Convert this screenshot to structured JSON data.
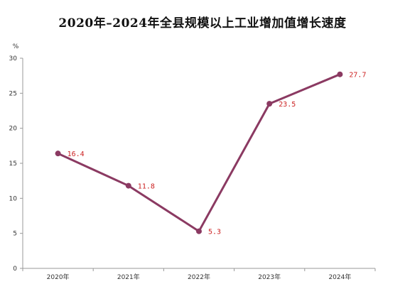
{
  "chart_data": {
    "type": "line",
    "title": "2020年–2024年全县规模以上工业增加值增长速度",
    "ylabel": "%",
    "categories": [
      "2020年",
      "2021年",
      "2022年",
      "2023年",
      "2024年"
    ],
    "series": [
      {
        "values": [
          16.4,
          11.8,
          5.3,
          23.5,
          27.7
        ]
      }
    ],
    "data_labels": [
      "16.4",
      "11.8",
      "5.3",
      "23.5",
      "27.7"
    ],
    "y_ticks": [
      "0",
      "5",
      "10",
      "15",
      "20",
      "25",
      "30"
    ],
    "ylim": [
      0,
      30
    ],
    "grid": false,
    "legend": "none",
    "colors": {
      "line": "#8b3a62",
      "marker": "#8b3a62",
      "label": "#cc2222",
      "axis": "#999999"
    }
  }
}
